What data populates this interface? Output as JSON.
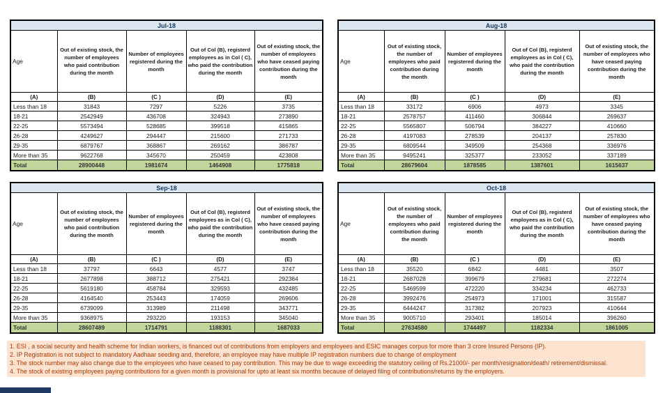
{
  "columns": [
    "Age",
    "Out of existing stock, the number of employees who paid contribution during the month",
    "Number of employees registered during the month",
    "Out of Col (B), registerd employees as in Col ( C), who paid the contribution during the month",
    "Out of existing stock, the number of  employees  who have ceased paying contribution during the month"
  ],
  "letters": [
    "(A)",
    "(B)",
    "(C )",
    "(D)",
    "(E)"
  ],
  "months": [
    {
      "title": "Jul-18",
      "rows": [
        [
          "Less than 18",
          "31843",
          "7297",
          "5226",
          "3735"
        ],
        [
          "18-21",
          "2542949",
          "436708",
          "324943",
          "273890"
        ],
        [
          "22-25",
          "5573494",
          "528685",
          "399518",
          "415865"
        ],
        [
          "26-28",
          "4249627",
          "294447",
          "215600",
          "271733"
        ],
        [
          "29-35",
          "6879767",
          "368867",
          "269162",
          "386787"
        ],
        [
          "More than 35",
          "9622768",
          "345670",
          "250459",
          "423808"
        ]
      ],
      "total": [
        "Total",
        "28900448",
        "1981674",
        "1464908",
        "1775818"
      ]
    },
    {
      "title": "Aug-18",
      "rows": [
        [
          "Less than 18",
          "33172",
          "6906",
          "4973",
          "3345"
        ],
        [
          "18-21",
          "2578757",
          "411460",
          "306844",
          "269637"
        ],
        [
          "22-25",
          "5565807",
          "506794",
          "384227",
          "410660"
        ],
        [
          "26-28",
          "4197083",
          "278539",
          "204137",
          "257830"
        ],
        [
          "29-35",
          "6809544",
          "349509",
          "254368",
          "336976"
        ],
        [
          "More than 35",
          "9495241",
          "325377",
          "233052",
          "337189"
        ]
      ],
      "total": [
        "Total",
        "28679604",
        "1878585",
        "1387601",
        "1615637"
      ]
    },
    {
      "title": "Sep-18",
      "rows": [
        [
          "Less than 18",
          "37797",
          "6643",
          "4577",
          "3747"
        ],
        [
          "18-21",
          "2677898",
          "388712",
          "275421",
          "292384"
        ],
        [
          "22-25",
          "5619180",
          "458784",
          "329593",
          "432485"
        ],
        [
          "26-28",
          "4164540",
          "253443",
          "174059",
          "269606"
        ],
        [
          "29-35",
          "6739099",
          "313989",
          "211498",
          "343771"
        ],
        [
          "More than 35",
          "9368975",
          "293220",
          "193153",
          "345040"
        ]
      ],
      "total": [
        "Total",
        "28607489",
        "1714791",
        "1188301",
        "1687033"
      ]
    },
    {
      "title": "Oct-18",
      "rows": [
        [
          "Less than 18",
          "35520",
          "6842",
          "4481",
          "3507"
        ],
        [
          "18-21",
          "2687028",
          "399679",
          "279681",
          "272274"
        ],
        [
          "22-25",
          "5469599",
          "472220",
          "334234",
          "462733"
        ],
        [
          "26-28",
          "3992476",
          "254973",
          "171001",
          "315587"
        ],
        [
          "29-35",
          "6444247",
          "317382",
          "207923",
          "410644"
        ],
        [
          "More than 35",
          "9005710",
          "293401",
          "185014",
          "396260"
        ]
      ],
      "total": [
        "Total",
        "27634580",
        "1744497",
        "1182334",
        "1861005"
      ]
    }
  ],
  "footnotes": [
    "1. ESI , a social security and health scheme for Indian workers, is financed out of contributions from employers and employees and ESIC manages corpus for more than 3 crore Insured Persons (IP).",
    "2. IP Registration is not subject to mandatory Aadhaar seeding and, therefore, an employee may have multiple IP registration numbers due to change of employment",
    "3. The stock number may also change due to the employees who have ceased to pay contribution. This may  be due to wage exceeding the statutory ceiling of  Rs.21000/- per month/resignation/death/ retirement/dismissal.",
    "4. The stock of existing employees paying contributions for a given month is provisional for upto at least six months because of delayed filing of contributions/returns by the employers."
  ],
  "colors": {
    "month_header_bg": "#dce6f1",
    "month_header_text": "#17375e",
    "total_row_bg": "#c2d69b",
    "footnote_bg": "#fbe3d0",
    "footnote_text": "#a33b0b",
    "corner_bar": "#1f3864",
    "border": "#000000"
  }
}
